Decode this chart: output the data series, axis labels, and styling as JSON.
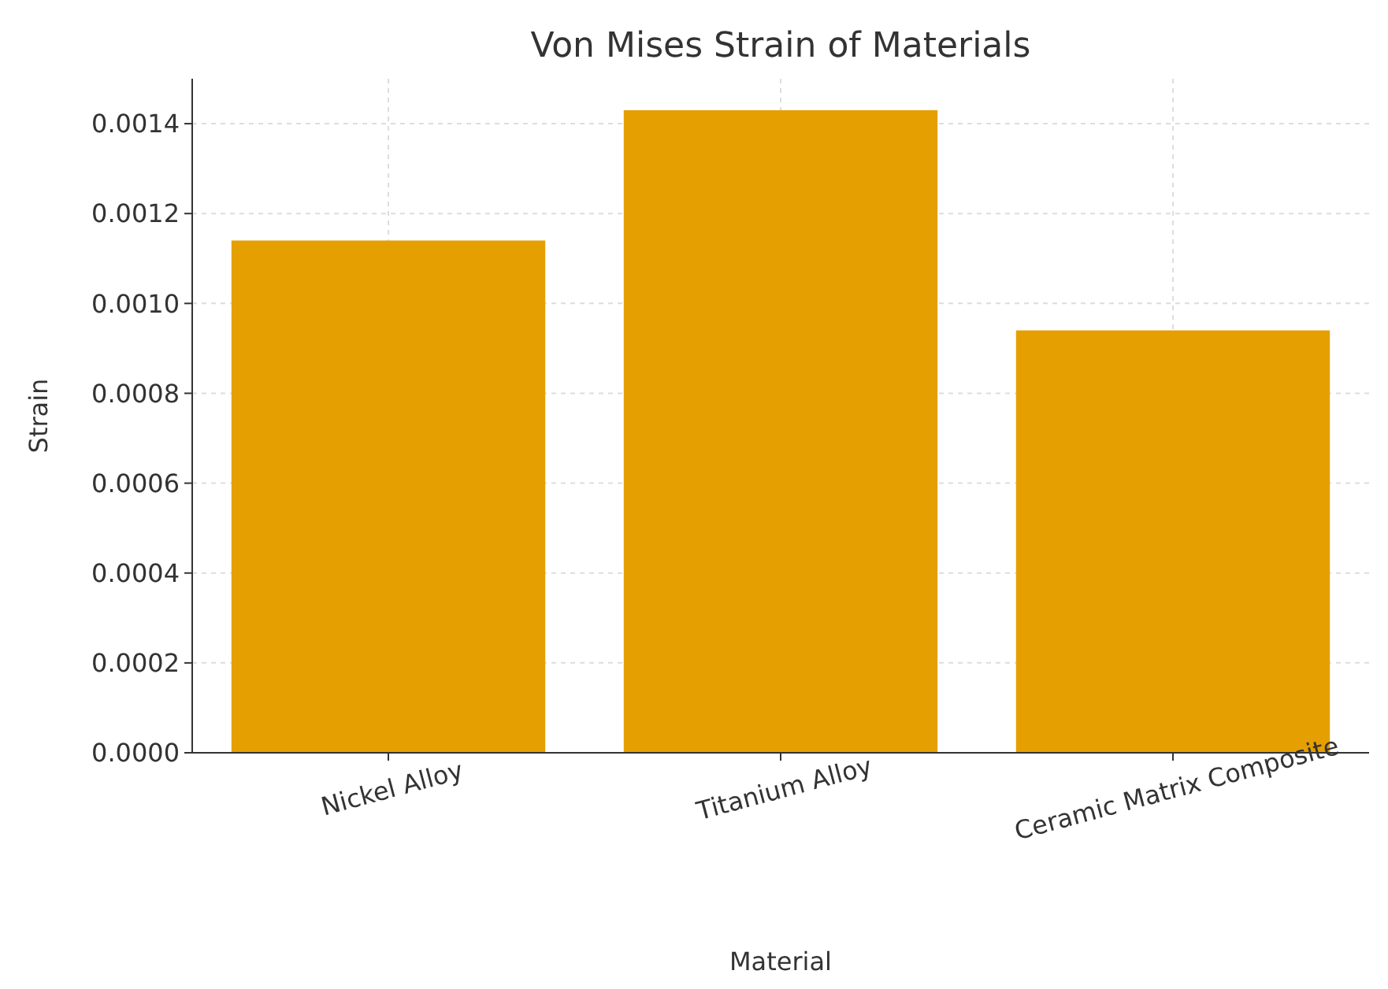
{
  "chart_data": {
    "type": "bar",
    "title": "Von Mises Strain of Materials",
    "xlabel": "Material",
    "ylabel": "Strain",
    "categories": [
      "Nickel Alloy",
      "Titanium Alloy",
      "Ceramic Matrix Composite"
    ],
    "values": [
      0.00114,
      0.00143,
      0.00094
    ],
    "color": "#e69f00",
    "ylim": [
      0,
      0.0015
    ],
    "yticks": [
      {
        "value": 0,
        "label": "0.0000"
      },
      {
        "value": 0.0002,
        "label": "0.0002"
      },
      {
        "value": 0.0004,
        "label": "0.0004"
      },
      {
        "value": 0.0006,
        "label": "0.0006"
      },
      {
        "value": 0.0008,
        "label": "0.0008"
      },
      {
        "value": 0.001,
        "label": "0.0010"
      },
      {
        "value": 0.0012,
        "label": "0.0012"
      },
      {
        "value": 0.0014,
        "label": "0.0014"
      }
    ],
    "grid": true
  }
}
